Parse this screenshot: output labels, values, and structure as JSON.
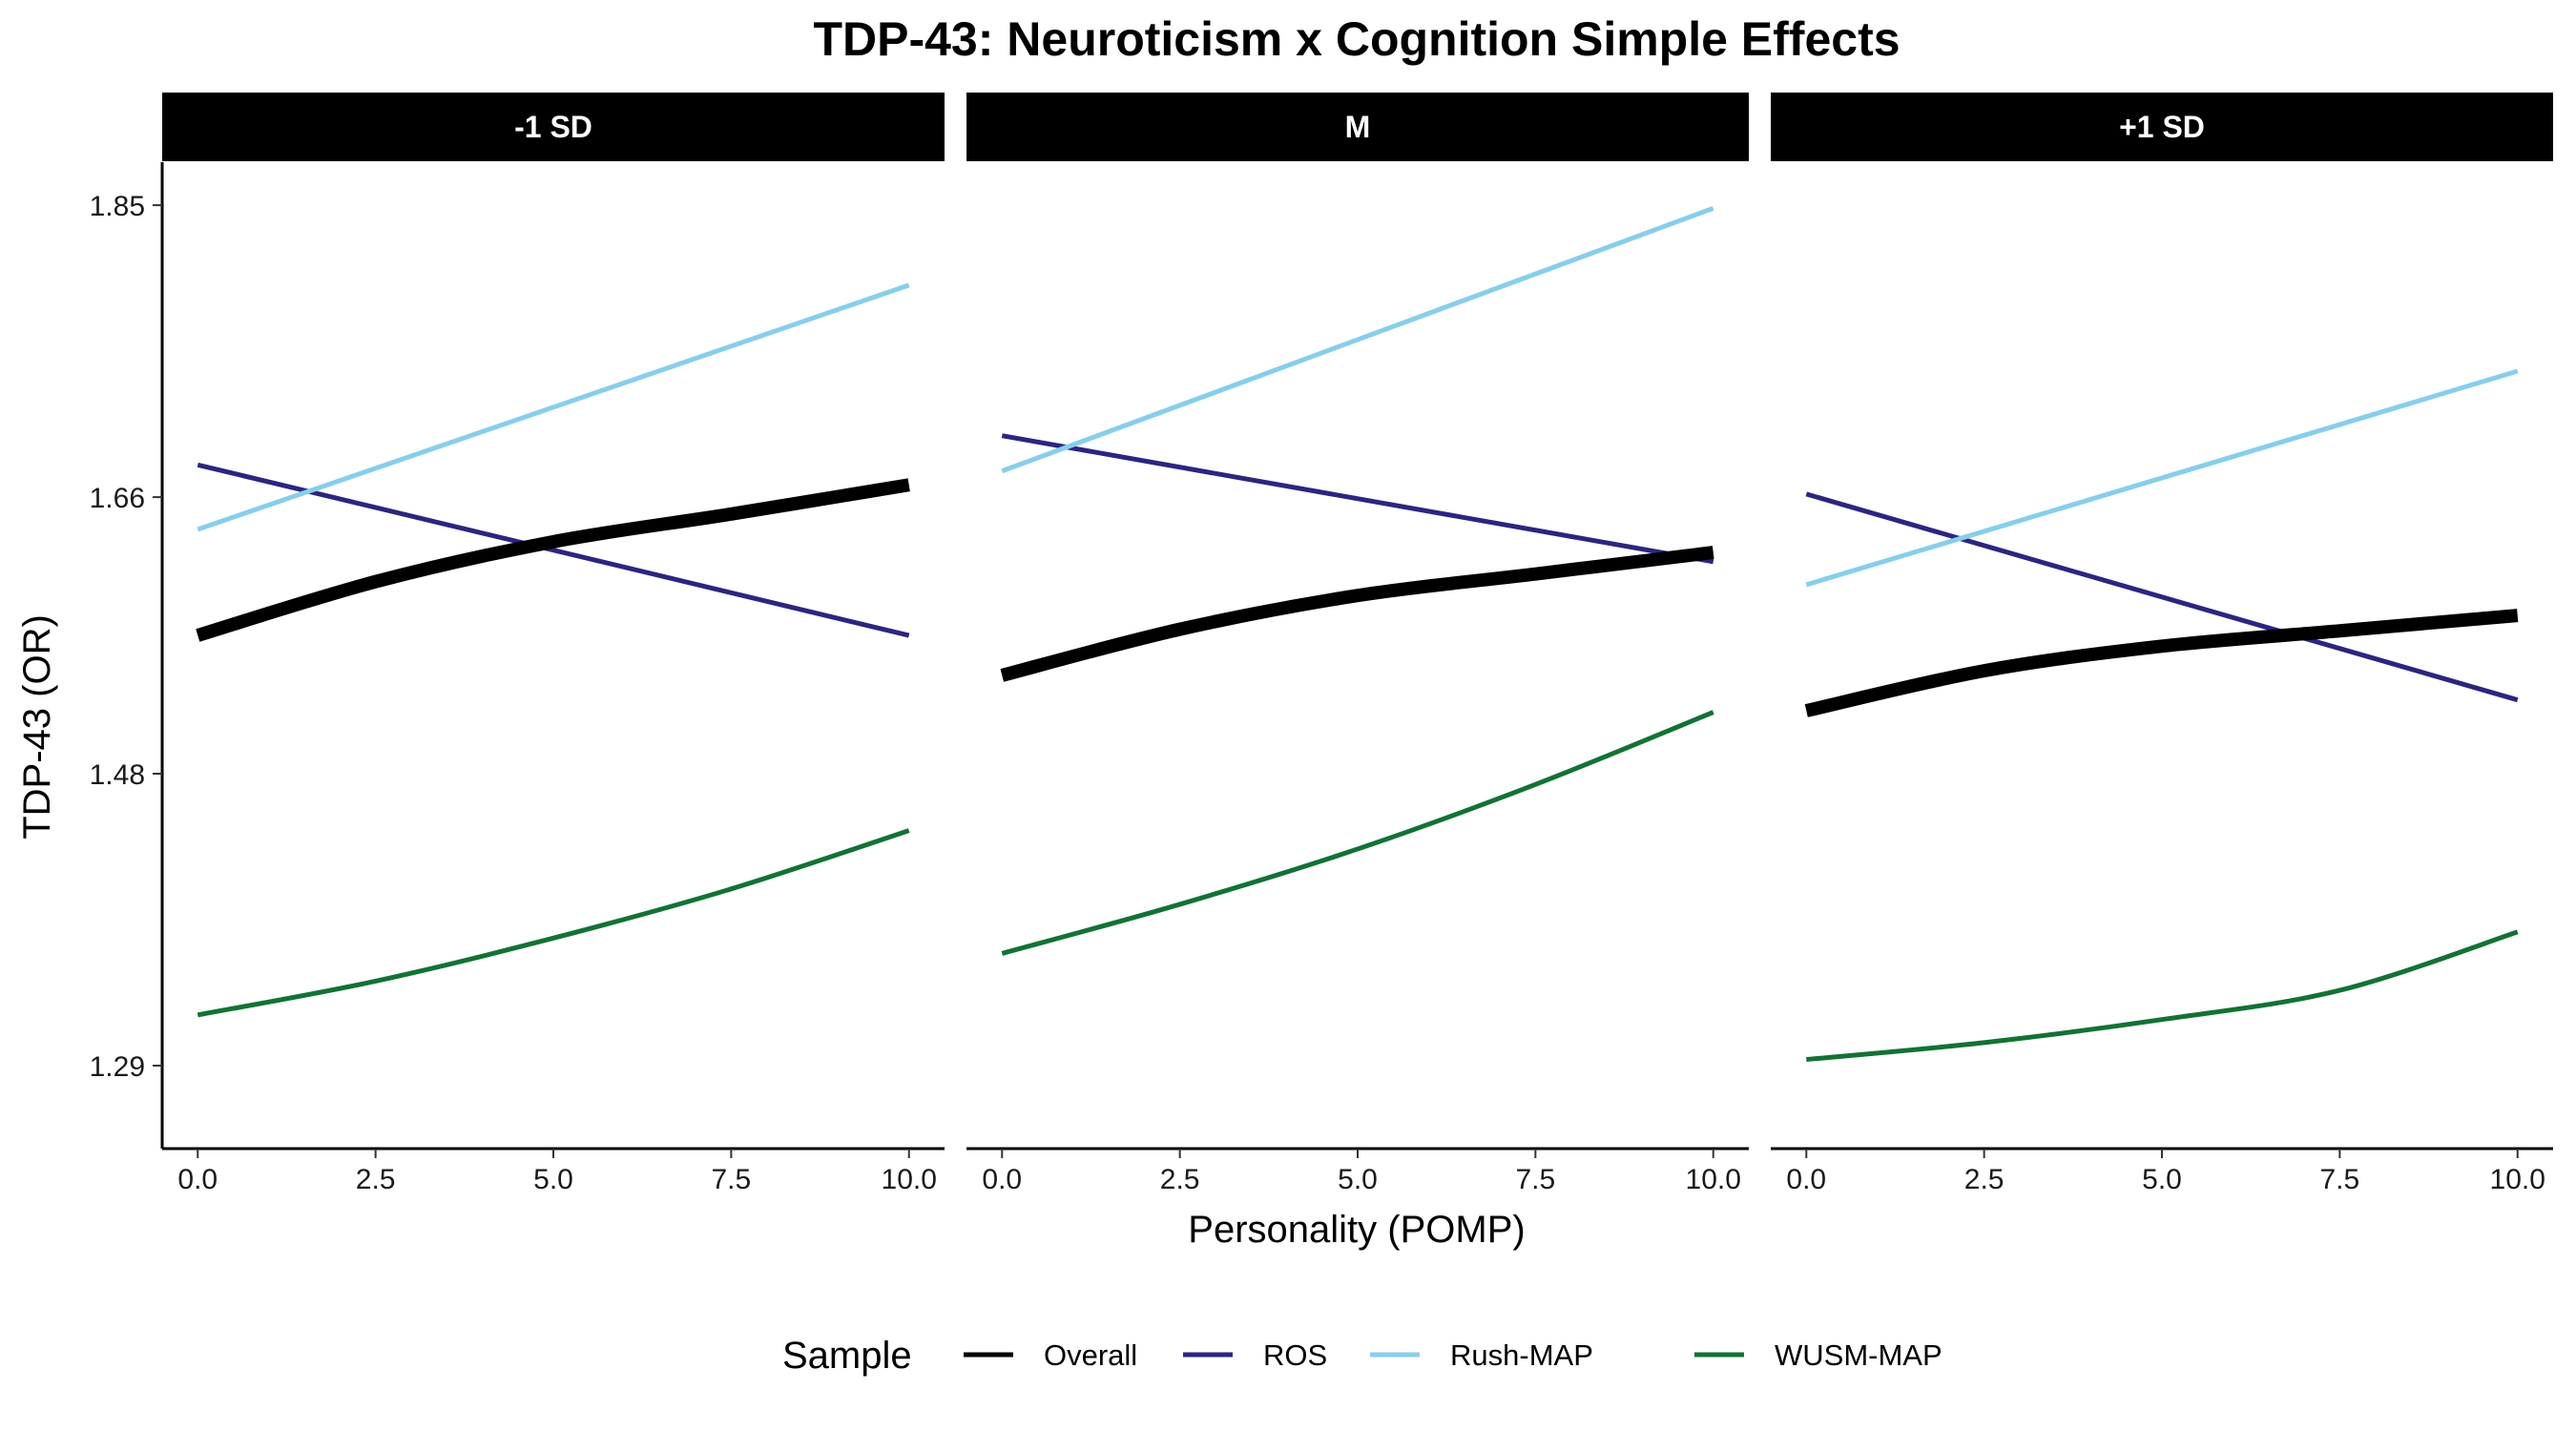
{
  "chart_data": {
    "type": "line",
    "title": "TDP-43: Neuroticism x Cognition Simple Effects",
    "xlabel": "Personality (POMP)",
    "ylabel": "TDP-43 (OR)",
    "xlim": [
      -0.5,
      10.5
    ],
    "ylim": [
      1.236,
      1.878
    ],
    "x_ticks": [
      0,
      2.5,
      5,
      7.5,
      10
    ],
    "x_tick_labels": [
      "0.0",
      "2.5",
      "5.0",
      "7.5",
      "10.0"
    ],
    "y_ticks": [
      1.29,
      1.48,
      1.66,
      1.85
    ],
    "y_tick_labels": [
      "1.29",
      "1.48",
      "1.66",
      "1.85"
    ],
    "grid": false,
    "legend": {
      "title": "Sample",
      "position": "bottom",
      "entries": [
        "Overall",
        "ROS",
        "Rush-MAP",
        "WUSM-MAP"
      ]
    },
    "series_styles": [
      {
        "name": "Overall",
        "color": "#000000",
        "weight": "thick"
      },
      {
        "name": "ROS",
        "color": "#2c2580",
        "weight": "normal"
      },
      {
        "name": "Rush-MAP",
        "color": "#87ceeb",
        "weight": "normal"
      },
      {
        "name": "WUSM-MAP",
        "color": "#127234",
        "weight": "normal"
      }
    ],
    "panels": [
      {
        "label": "-1 SD",
        "series": [
          {
            "name": "Overall",
            "x": [
              0,
              2.5,
              5,
              7.5,
              10
            ],
            "y": [
              1.57,
              1.605,
              1.631,
              1.649,
              1.668
            ]
          },
          {
            "name": "ROS",
            "x": [
              0,
              10
            ],
            "y": [
              1.681,
              1.57
            ]
          },
          {
            "name": "Rush-MAP",
            "x": [
              0,
              10
            ],
            "y": [
              1.639,
              1.798
            ]
          },
          {
            "name": "WUSM-MAP",
            "x": [
              0,
              2.5,
              5,
              7.5,
              10
            ],
            "y": [
              1.323,
              1.345,
              1.373,
              1.405,
              1.443
            ]
          }
        ]
      },
      {
        "label": "M",
        "series": [
          {
            "name": "Overall",
            "x": [
              0,
              2.5,
              5,
              7.5,
              10
            ],
            "y": [
              1.544,
              1.574,
              1.596,
              1.61,
              1.624
            ]
          },
          {
            "name": "ROS",
            "x": [
              0,
              10
            ],
            "y": [
              1.7,
              1.618
            ]
          },
          {
            "name": "Rush-MAP",
            "x": [
              0,
              10
            ],
            "y": [
              1.677,
              1.848
            ]
          },
          {
            "name": "WUSM-MAP",
            "x": [
              0,
              2.5,
              5,
              7.5,
              10
            ],
            "y": [
              1.363,
              1.395,
              1.431,
              1.473,
              1.52
            ]
          }
        ]
      },
      {
        "label": "+1 SD",
        "series": [
          {
            "name": "Overall",
            "x": [
              0,
              2.5,
              5,
              7.5,
              10
            ],
            "y": [
              1.521,
              1.547,
              1.563,
              1.573,
              1.583
            ]
          },
          {
            "name": "ROS",
            "x": [
              0,
              10
            ],
            "y": [
              1.662,
              1.528
            ]
          },
          {
            "name": "Rush-MAP",
            "x": [
              0,
              10
            ],
            "y": [
              1.603,
              1.742
            ]
          },
          {
            "name": "WUSM-MAP",
            "x": [
              0,
              2.5,
              5,
              7.5,
              10
            ],
            "y": [
              1.294,
              1.305,
              1.32,
              1.339,
              1.377
            ]
          }
        ]
      }
    ]
  }
}
